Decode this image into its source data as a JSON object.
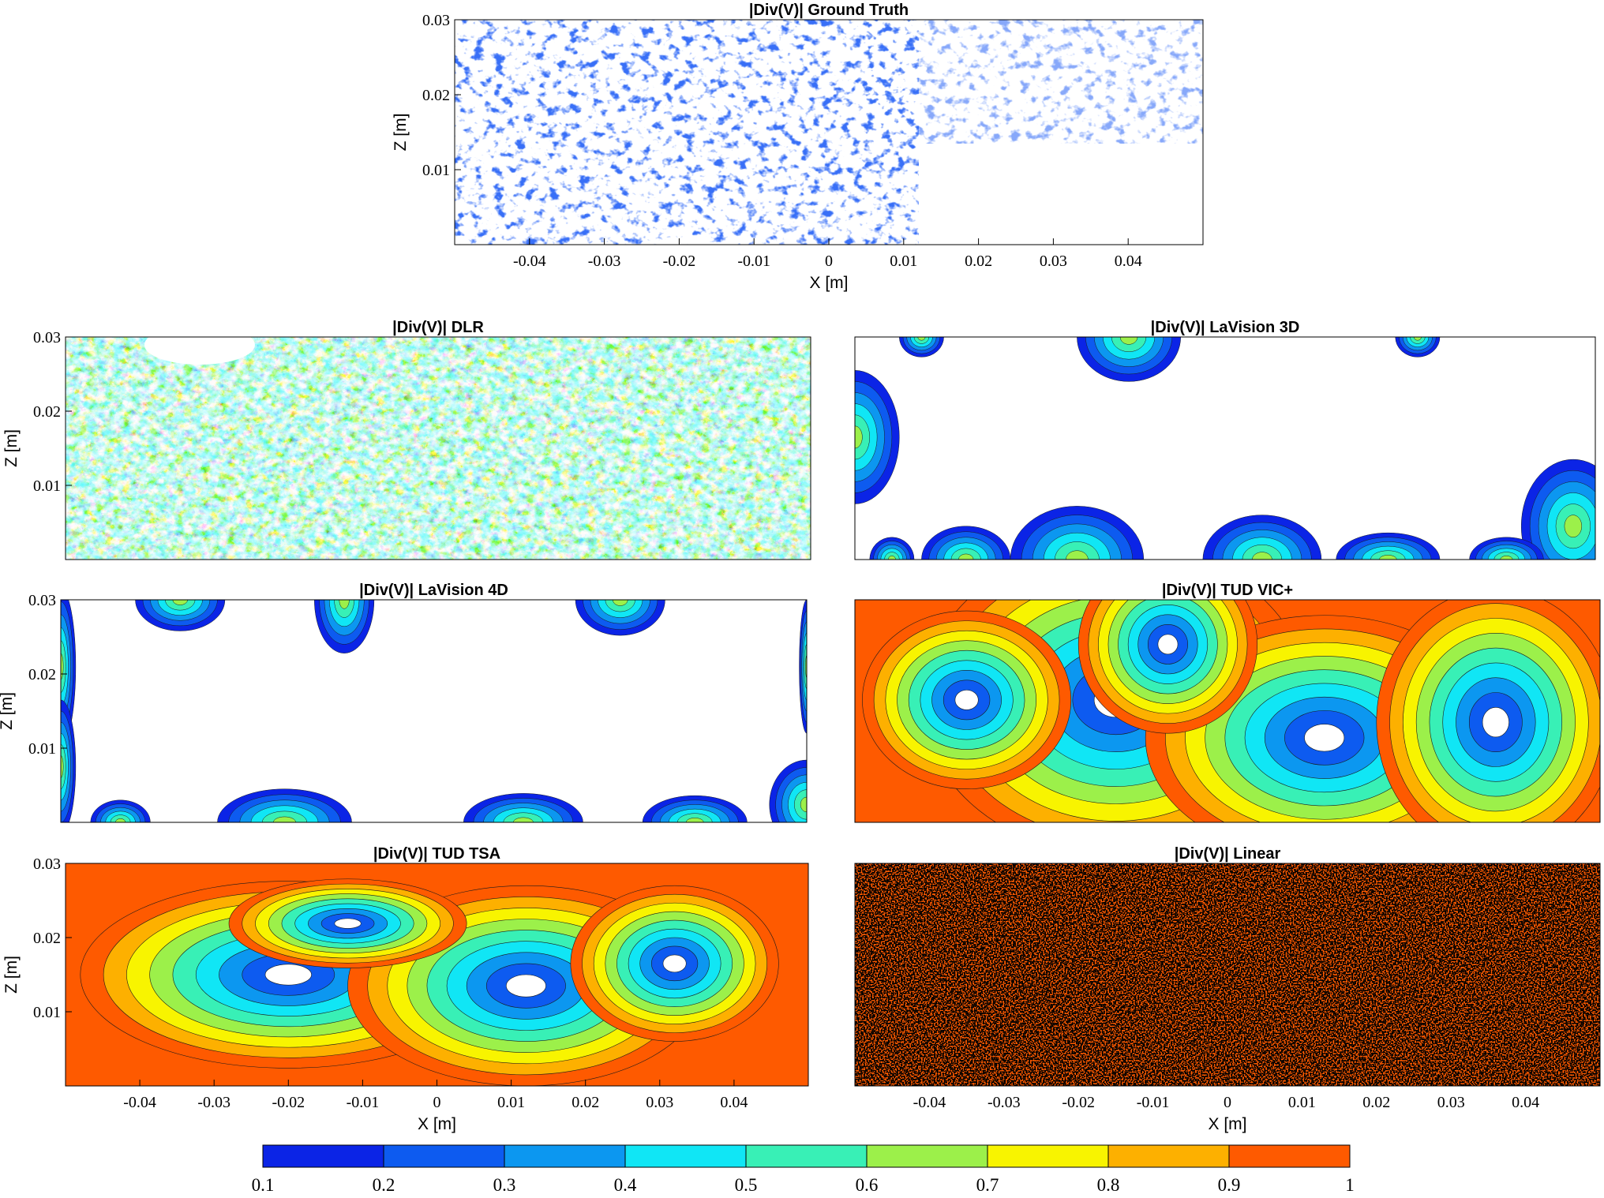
{
  "figure": {
    "colorbar": {
      "levels": [
        0.1,
        0.2,
        0.3,
        0.4,
        0.5,
        0.6,
        0.7,
        0.8,
        0.9,
        1
      ],
      "tick_labels": [
        "0.1",
        "0.2",
        "0.3",
        "0.4",
        "0.5",
        "0.6",
        "0.7",
        "0.8",
        "0.9",
        "1"
      ],
      "colors": [
        "#0b24e6",
        "#0d5bf0",
        "#0c97f0",
        "#10e6f5",
        "#38f0b6",
        "#9cf04a",
        "#f8f400",
        "#fdb000",
        "#fe5a00"
      ]
    }
  },
  "chart_data": [
    {
      "id": "gt",
      "type": "heatmap",
      "title": "|Div(V)| Ground Truth",
      "xlabel": "X [m]",
      "ylabel": "Z [m]",
      "xlim": [
        -0.05,
        0.05
      ],
      "ylim": [
        0,
        0.03
      ],
      "xticks": [
        "-0.04",
        "-0.03",
        "-0.02",
        "-0.01",
        "0",
        "0.01",
        "0.02",
        "0.03",
        "0.04"
      ],
      "yticks": [
        "0.01",
        "0.02",
        "0.03"
      ],
      "pattern": "sparse-noise",
      "dominant_level": "0.1-0.2"
    },
    {
      "id": "dlr",
      "type": "heatmap",
      "title": "|Div(V)| DLR",
      "xlabel": "",
      "ylabel": "Z [m]",
      "xlim": [
        -0.05,
        0.05
      ],
      "ylim": [
        0,
        0.03
      ],
      "xticks": [],
      "yticks": [
        "0.01",
        "0.02",
        "0.03"
      ],
      "pattern": "dense-noise",
      "dominant_level": "0.1-1"
    },
    {
      "id": "lav3d",
      "type": "heatmap",
      "title": "|Div(V)| LaVision 3D",
      "xlabel": "",
      "ylabel": "",
      "xlim": [
        -0.05,
        0.05
      ],
      "ylim": [
        0,
        0.03
      ],
      "xticks": [],
      "yticks": [],
      "pattern": "edge-lobes",
      "dominant_level": "<0.1"
    },
    {
      "id": "lav4d",
      "type": "heatmap",
      "title": "|Div(V)| LaVision 4D",
      "xlabel": "",
      "ylabel": "Z [m]",
      "xlim": [
        -0.05,
        0.05
      ],
      "ylim": [
        0,
        0.03
      ],
      "xticks": [],
      "yticks": [
        "0.01",
        "0.02",
        "0.03"
      ],
      "pattern": "edge-lobes",
      "dominant_level": "<0.1"
    },
    {
      "id": "vic",
      "type": "heatmap",
      "title": "|Div(V)| TUD VIC+",
      "xlabel": "",
      "ylabel": "",
      "xlim": [
        -0.05,
        0.05
      ],
      "ylim": [
        0,
        0.03
      ],
      "xticks": [],
      "yticks": [],
      "pattern": "saturated-with-gradient",
      "dominant_level": "0.9-1"
    },
    {
      "id": "tsa",
      "type": "heatmap",
      "title": "|Div(V)| TUD TSA",
      "xlabel": "X [m]",
      "ylabel": "Z [m]",
      "xlim": [
        -0.05,
        0.05
      ],
      "ylim": [
        0,
        0.03
      ],
      "xticks": [
        "-0.04",
        "-0.03",
        "-0.02",
        "-0.01",
        "0",
        "0.01",
        "0.02",
        "0.03",
        "0.04"
      ],
      "yticks": [
        "0.01",
        "0.02",
        "0.03"
      ],
      "pattern": "saturated-with-gradient",
      "dominant_level": "0.9-1"
    },
    {
      "id": "lin",
      "type": "heatmap",
      "title": "|Div(V)| Linear",
      "xlabel": "X [m]",
      "ylabel": "",
      "xlim": [
        -0.05,
        0.05
      ],
      "ylim": [
        0,
        0.03
      ],
      "xticks": [
        "-0.04",
        "-0.03",
        "-0.02",
        "-0.01",
        "0",
        "0.01",
        "0.02",
        "0.03",
        "0.04"
      ],
      "yticks": [],
      "pattern": "fully-saturated",
      "dominant_level": "0.9-1"
    }
  ]
}
